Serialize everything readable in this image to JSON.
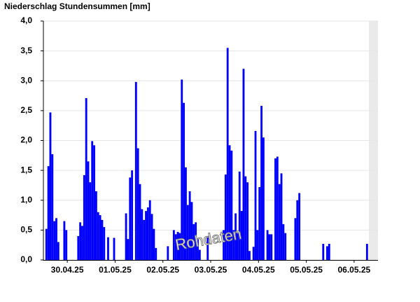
{
  "chart_data": {
    "type": "bar",
    "title": "Niederschlag Stundensummen [mm]",
    "watermark": "Rohdaten",
    "color": "#0000ff",
    "grid": true,
    "x": [
      1,
      2,
      3,
      4,
      5,
      6,
      7,
      10,
      11,
      17,
      18,
      19,
      20,
      21,
      22,
      23,
      24,
      25,
      26,
      27,
      28,
      29,
      30,
      32,
      35,
      41,
      42,
      43,
      44,
      46,
      47,
      48,
      49,
      50,
      51,
      52,
      53,
      54,
      55,
      56,
      62,
      65,
      66,
      67,
      68,
      69,
      70,
      71,
      72,
      73,
      74,
      75,
      76,
      77,
      78,
      82,
      90,
      91,
      92,
      93,
      94,
      95,
      96,
      97,
      98,
      99,
      100,
      101,
      102,
      103,
      105,
      106,
      107,
      108,
      109,
      110,
      112,
      113,
      114,
      116,
      117,
      118,
      119,
      120,
      121,
      126,
      127,
      128,
      140,
      142,
      143,
      162
    ],
    "values": [
      0.52,
      1.57,
      2.47,
      1.77,
      0.65,
      0.7,
      0.3,
      0.65,
      0.5,
      0.4,
      0.63,
      0.57,
      1.42,
      2.71,
      1.65,
      1.3,
      1.99,
      1.92,
      1.15,
      0.8,
      0.75,
      0.67,
      0.55,
      0.38,
      0.37,
      0.78,
      0.35,
      1.38,
      1.5,
      2.98,
      1.87,
      1.27,
      0.85,
      0.67,
      0.82,
      0.88,
      1.0,
      0.77,
      0.52,
      0.2,
      0.23,
      0.5,
      0.43,
      0.47,
      0.45,
      3.02,
      2.63,
      1.55,
      0.92,
      1.15,
      0.97,
      0.6,
      0.63,
      0.35,
      0.17,
      0.4,
      0.5,
      1.43,
      3.55,
      1.92,
      1.83,
      0.5,
      0.78,
      0.45,
      1.48,
      0.82,
      3.2,
      1.4,
      1.3,
      0.15,
      0.22,
      2.16,
      0.5,
      1.22,
      2.58,
      2.05,
      0.5,
      0.43,
      0.43,
      1.7,
      1.73,
      1.27,
      1.45,
      0.6,
      0.45,
      0.7,
      1.0,
      1.12,
      0.27,
      0.23,
      0.27,
      0.27
    ],
    "xlim": [
      0,
      168
    ],
    "xticks": [
      {
        "value": 12,
        "label": "30.04.25"
      },
      {
        "value": 36,
        "label": "01.05.25"
      },
      {
        "value": 60,
        "label": "02.05.25"
      },
      {
        "value": 84,
        "label": "03.05.25"
      },
      {
        "value": 108,
        "label": "04.05.25"
      },
      {
        "value": 132,
        "label": "05.05.25"
      },
      {
        "value": 156,
        "label": "06.05.25"
      }
    ],
    "ylim": [
      0,
      4
    ],
    "yticks": [
      {
        "value": 0,
        "label": "0,0"
      },
      {
        "value": 0.5,
        "label": "0,5"
      },
      {
        "value": 1,
        "label": "1,0"
      },
      {
        "value": 1.5,
        "label": "1,5"
      },
      {
        "value": 2,
        "label": "2,0"
      },
      {
        "value": 2.5,
        "label": "2,5"
      },
      {
        "value": 3,
        "label": "3,0"
      },
      {
        "value": 3.5,
        "label": "3,5"
      },
      {
        "value": 4,
        "label": "4,0"
      }
    ]
  }
}
